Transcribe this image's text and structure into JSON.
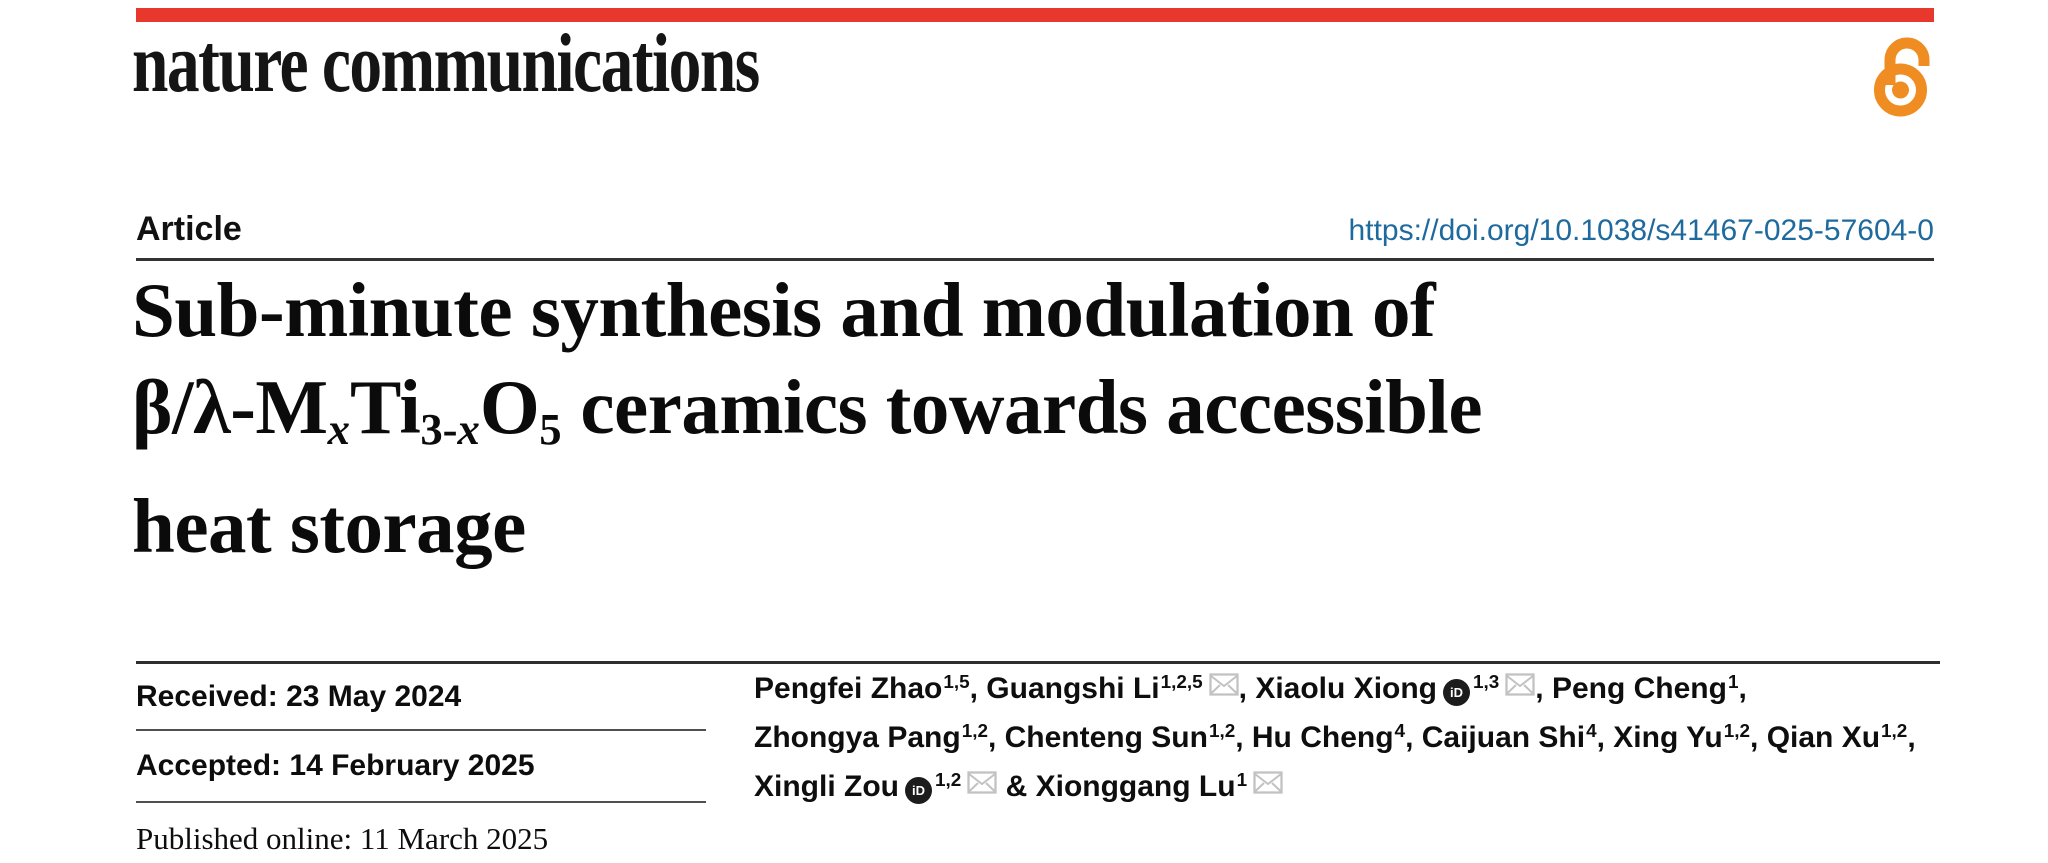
{
  "colors": {
    "accent_red": "#e8382d",
    "open_access_orange": "#ef8d22",
    "doi_blue": "#1e6a9e",
    "text_ink": "#0d0d0d",
    "rule_dark": "#333333",
    "rule_light": "#4f4f4f",
    "orcid_black": "#1c1c1c",
    "mail_gray": "#c2c2c2"
  },
  "masthead": {
    "logo": "nature communications"
  },
  "header": {
    "article_label": "Article",
    "doi": "https://doi.org/10.1038/s41467-025-57604-0"
  },
  "title": {
    "segments": [
      {
        "text": "Sub-minute synthesis and modulation of"
      },
      {
        "break": true
      },
      {
        "text": "β/λ-M"
      },
      {
        "text": "x",
        "sub": true,
        "italic": true
      },
      {
        "text": "Ti"
      },
      {
        "text": "3-",
        "sub": true
      },
      {
        "text": "x",
        "sub": true,
        "italic": true
      },
      {
        "text": "O"
      },
      {
        "text": "5",
        "sub": true
      },
      {
        "text": " ceramics towards accessible"
      },
      {
        "break": true
      },
      {
        "text": "heat storage"
      }
    ]
  },
  "dates": {
    "rows": [
      {
        "label": "Received:",
        "value": "23 May 2024"
      },
      {
        "label": "Accepted:",
        "value": "14 February 2025"
      }
    ],
    "published": {
      "label": "Published online:",
      "value": "11 March 2025"
    }
  },
  "icons": {
    "orcid_text": "iD"
  },
  "authors": {
    "lines": [
      [
        {
          "text": "Pengfei Zhao",
          "sup": "1,5"
        },
        {
          "text": ", "
        },
        {
          "text": "Guangshi Li",
          "sup": "1,2,5",
          "mail": true
        },
        {
          "text": ", "
        },
        {
          "text": "Xiaolu Xiong",
          "orcid": true,
          "sup": "1,3",
          "mail": true
        },
        {
          "text": ", "
        },
        {
          "text": "Peng Cheng",
          "sup": "1"
        },
        {
          "text": ","
        }
      ],
      [
        {
          "text": "Zhongya Pang",
          "sup": "1,2"
        },
        {
          "text": ", "
        },
        {
          "text": "Chenteng Sun",
          "sup": "1,2"
        },
        {
          "text": ", "
        },
        {
          "text": "Hu Cheng",
          "sup": "4"
        },
        {
          "text": ", "
        },
        {
          "text": "Caijuan Shi",
          "sup": "4"
        },
        {
          "text": ", "
        },
        {
          "text": "Xing Yu",
          "sup": "1,2"
        },
        {
          "text": ", "
        },
        {
          "text": "Qian Xu",
          "sup": "1,2"
        },
        {
          "text": ","
        }
      ],
      [
        {
          "text": "Xingli Zou",
          "orcid": true,
          "sup": "1,2",
          "mail": true
        },
        {
          "text": " & "
        },
        {
          "text": "Xionggang Lu",
          "sup": "1",
          "mail": true
        }
      ]
    ]
  }
}
